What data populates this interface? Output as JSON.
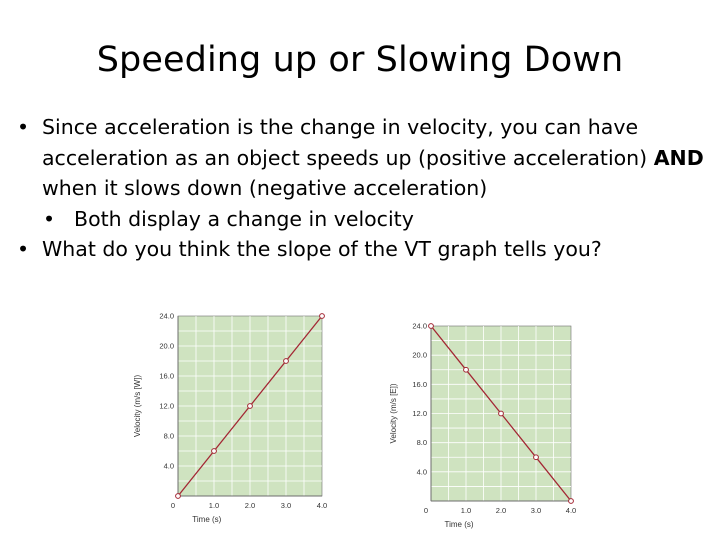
{
  "slide": {
    "title": "Speeding up or Slowing Down",
    "bullets": [
      {
        "level": 1,
        "segments": [
          {
            "text": "Since acceleration is the change in velocity, you can have acceleration as an object speeds up (positive acceleration) ",
            "bold": false
          },
          {
            "text": "AND",
            "bold": true
          },
          {
            "text": " when it slows down (negative acceleration)",
            "bold": false
          }
        ]
      },
      {
        "level": 2,
        "segments": [
          {
            "text": "Both display a change in velocity",
            "bold": false
          }
        ]
      },
      {
        "level": 1,
        "segments": [
          {
            "text": "What do you think the slope of the VT graph tells you?",
            "bold": false
          }
        ]
      }
    ],
    "bullet_char": "•"
  },
  "colors": {
    "plot_bg": "#cfe3c0",
    "grid": "#ffffff",
    "line": "#a32633",
    "axis": "#6e6e6e"
  },
  "chart_data": [
    {
      "type": "line",
      "x": [
        0,
        1.0,
        2.0,
        3.0,
        4.0
      ],
      "y": [
        0,
        6.0,
        12.0,
        18.0,
        24.0
      ],
      "xlim": [
        0,
        4.0
      ],
      "ylim": [
        0,
        24.0
      ],
      "xticks": [
        "0",
        "1.0",
        "2.0",
        "3.0",
        "4.0"
      ],
      "yticks": [
        "4.0",
        "8.0",
        "12.0",
        "16.0",
        "20.0",
        "24.0"
      ],
      "xlabel": "Time (s)",
      "ylabel": "Velocity (m/s [W])",
      "grid": true
    },
    {
      "type": "line",
      "x": [
        0,
        1.0,
        2.0,
        3.0,
        4.0
      ],
      "y": [
        24.0,
        18.0,
        12.0,
        6.0,
        0
      ],
      "xlim": [
        0,
        4.0
      ],
      "ylim": [
        0,
        24.0
      ],
      "xticks": [
        "0",
        "1.0",
        "2.0",
        "3.0",
        "4.0"
      ],
      "yticks": [
        "4.0",
        "8.0",
        "12.0",
        "16.0",
        "20.0",
        "24.0"
      ],
      "xlabel": "Time (s)",
      "ylabel": "Velocity (m/s [E])",
      "grid": true
    }
  ]
}
